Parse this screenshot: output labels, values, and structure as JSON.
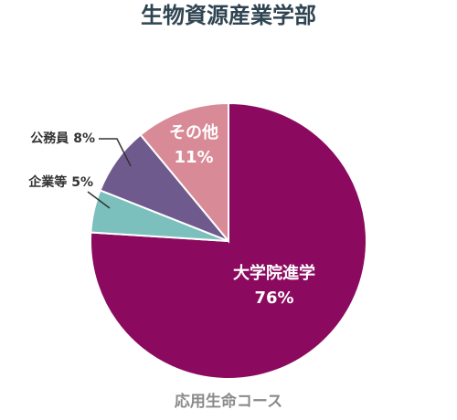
{
  "chart_data": {
    "type": "pie",
    "title": "生物資源産業学部",
    "subtitle": "応用生命コース",
    "categories": [
      "大学院進学",
      "企業等",
      "公務員",
      "その他"
    ],
    "values": [
      76,
      5,
      8,
      11
    ],
    "value_labels": [
      "76%",
      "5%",
      "8%",
      "11%"
    ],
    "colors": [
      "#8b0a5f",
      "#7cc0bd",
      "#6f5a8e",
      "#d98a97"
    ]
  }
}
